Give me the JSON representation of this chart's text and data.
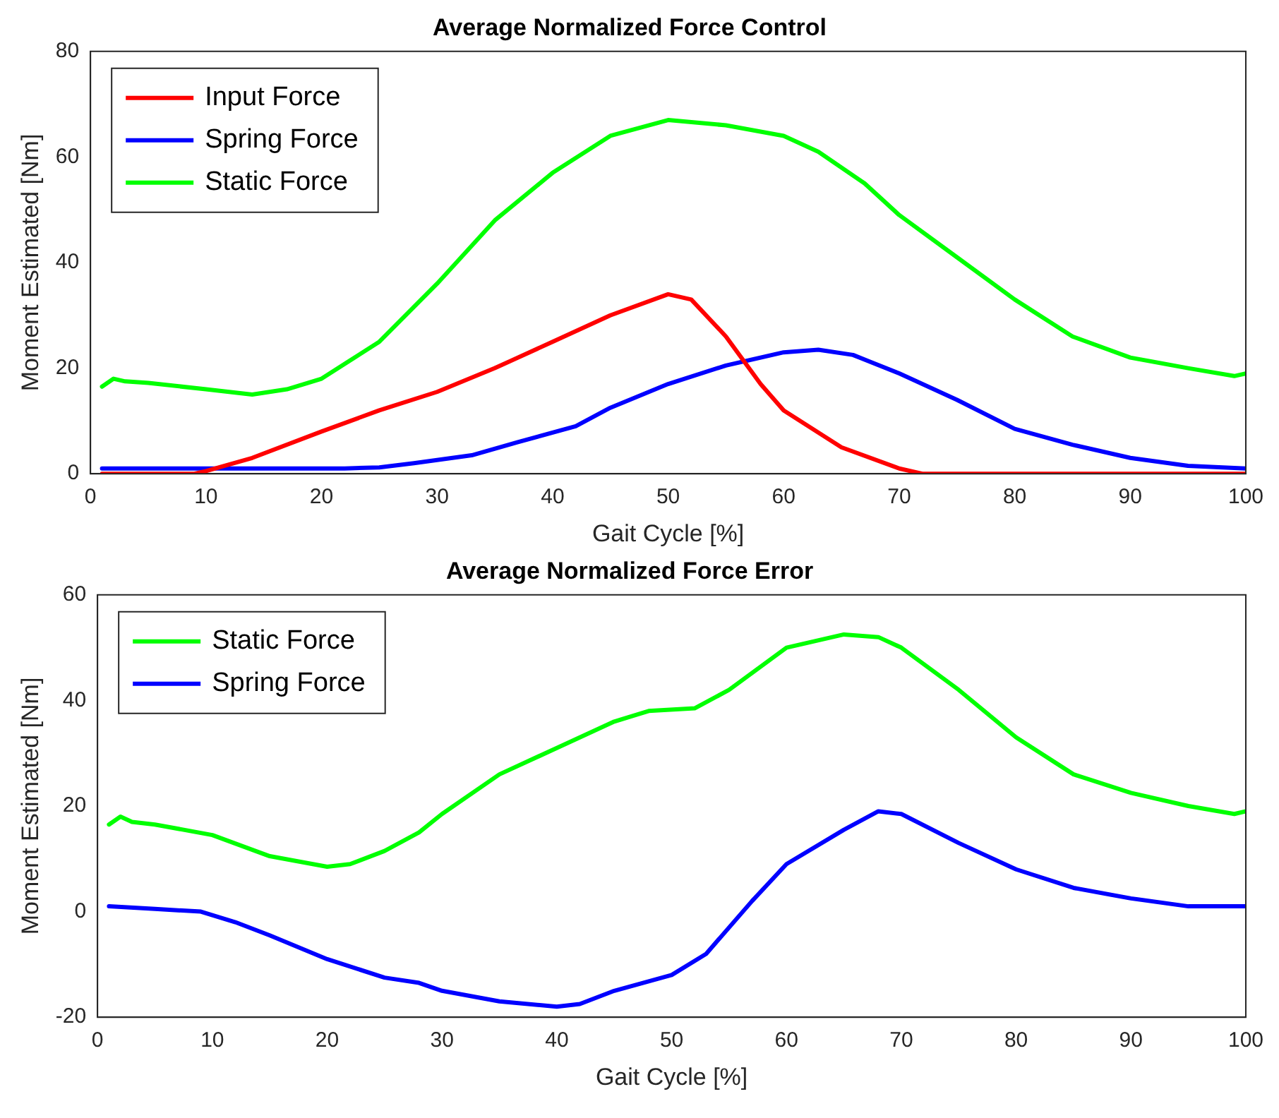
{
  "chart_data": [
    {
      "type": "line",
      "title": "Average Normalized Force Control",
      "xlabel": "Gait Cycle [%]",
      "ylabel": "Moment Estimated [Nm]",
      "xlim": [
        0,
        100
      ],
      "xticks": [
        0,
        10,
        20,
        30,
        40,
        50,
        60,
        70,
        80,
        90,
        100
      ],
      "ylim": [
        0,
        80
      ],
      "yticks": [
        0,
        20,
        40,
        60,
        80
      ],
      "grid": false,
      "legend": "top left",
      "marker": "none",
      "line_style": "solid",
      "series": [
        {
          "name": "Input Force",
          "color": "#ff0000",
          "x": [
            1,
            5,
            9,
            10,
            14,
            20,
            25,
            30,
            35,
            40,
            45,
            50,
            52,
            55,
            58,
            60,
            65,
            70,
            72,
            80,
            90,
            100
          ],
          "values": [
            0,
            0,
            0,
            0.5,
            3,
            8,
            12,
            15.5,
            20,
            25,
            30,
            34,
            33,
            26,
            17,
            12,
            5,
            1,
            0,
            0,
            0,
            0
          ]
        },
        {
          "name": "Spring Force",
          "color": "#0000ff",
          "x": [
            1,
            10,
            22,
            25,
            28,
            33,
            37,
            42,
            45,
            50,
            55,
            60,
            63,
            66,
            70,
            75,
            80,
            85,
            90,
            95,
            100
          ],
          "values": [
            1,
            1,
            1,
            1.2,
            2,
            3.5,
            6,
            9,
            12.5,
            17,
            20.5,
            23,
            23.5,
            22.5,
            19,
            14,
            8.5,
            5.5,
            3,
            1.5,
            1
          ]
        },
        {
          "name": "Static Force",
          "color": "#00ff00",
          "x": [
            1,
            2,
            3,
            5,
            10,
            14,
            17,
            20,
            25,
            30,
            35,
            40,
            45,
            50,
            55,
            60,
            63,
            67,
            70,
            75,
            80,
            85,
            90,
            95,
            99,
            100
          ],
          "values": [
            16.5,
            18,
            17.5,
            17.2,
            16,
            15,
            16,
            18,
            25,
            36,
            48,
            57,
            64,
            67,
            66,
            64,
            61,
            55,
            49,
            41,
            33,
            26,
            22,
            20,
            18.5,
            19
          ]
        }
      ]
    },
    {
      "type": "line",
      "title": "Average Normalized Force Error",
      "xlabel": "Gait Cycle [%]",
      "ylabel": "Moment Estimated [Nm]",
      "xlim": [
        0,
        100
      ],
      "xticks": [
        0,
        10,
        20,
        30,
        40,
        50,
        60,
        70,
        80,
        90,
        100
      ],
      "ylim": [
        -20,
        60
      ],
      "yticks": [
        -20,
        0,
        20,
        40,
        60
      ],
      "grid": false,
      "legend": "top left",
      "marker": "none",
      "line_style": "solid",
      "series": [
        {
          "name": "Static Force",
          "color": "#00ff00",
          "x": [
            1,
            2,
            3,
            5,
            10,
            15,
            20,
            22,
            25,
            28,
            30,
            35,
            40,
            45,
            48,
            52,
            55,
            60,
            65,
            68,
            70,
            75,
            80,
            85,
            90,
            95,
            99,
            100
          ],
          "values": [
            16.5,
            18,
            17,
            16.5,
            14.5,
            10.5,
            8.5,
            9,
            11.5,
            15,
            18.5,
            26,
            31,
            36,
            38,
            38.5,
            42,
            50,
            52.5,
            52,
            50,
            42,
            33,
            26,
            22.5,
            20,
            18.5,
            19
          ]
        },
        {
          "name": "Spring Force",
          "color": "#0000ff",
          "x": [
            1,
            5,
            9,
            12,
            15,
            20,
            25,
            28,
            30,
            35,
            40,
            42,
            45,
            50,
            53,
            57,
            60,
            65,
            68,
            70,
            75,
            80,
            85,
            90,
            95,
            100
          ],
          "values": [
            1,
            0.5,
            0,
            -2,
            -4.5,
            -9,
            -12.5,
            -13.5,
            -15,
            -17,
            -18,
            -17.5,
            -15,
            -12,
            -8,
            2,
            9,
            15.5,
            19,
            18.5,
            13,
            8,
            4.5,
            2.5,
            1,
            1
          ]
        }
      ]
    }
  ]
}
